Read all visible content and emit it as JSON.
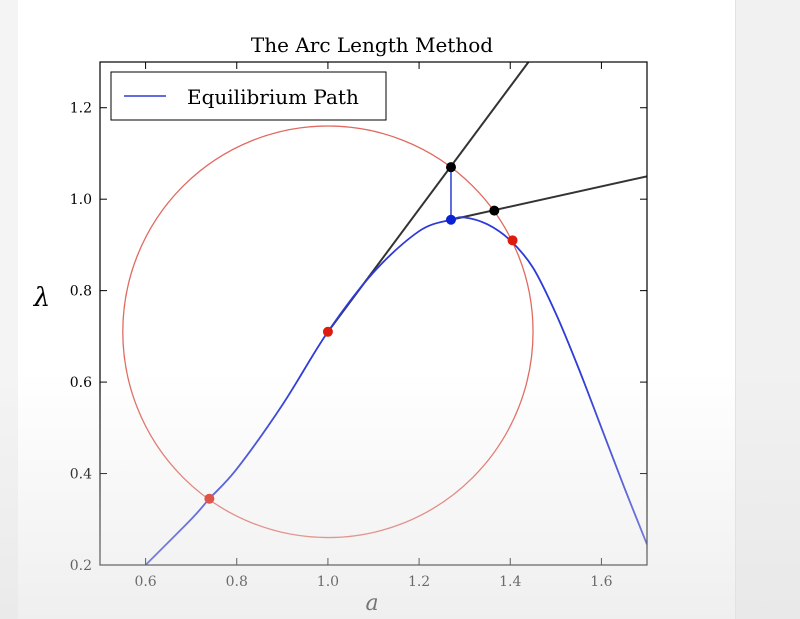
{
  "chart_data": {
    "type": "line",
    "title": "The Arc Length Method",
    "xlabel": "a",
    "ylabel": "λ",
    "xlim": [
      0.5,
      1.7
    ],
    "ylim": [
      0.2,
      1.3
    ],
    "x_ticks": [
      "0.6",
      "0.8",
      "1.0",
      "1.2",
      "1.4",
      "1.6"
    ],
    "y_ticks": [
      "0.2",
      "0.4",
      "0.6",
      "0.8",
      "1.0",
      "1.2"
    ],
    "grid": false,
    "legend": {
      "placement": "top-left",
      "entries": [
        "Equilibrium Path"
      ]
    },
    "series": [
      {
        "name": "Equilibrium Path",
        "color": "#2e3bd6",
        "x": [
          0.6,
          0.7,
          0.74,
          0.8,
          0.9,
          1.0,
          1.1,
          1.2,
          1.27,
          1.3,
          1.35,
          1.4,
          1.45,
          1.5,
          1.55,
          1.6,
          1.65,
          1.7
        ],
        "y": [
          0.2,
          0.3,
          0.345,
          0.41,
          0.55,
          0.71,
          0.84,
          0.93,
          0.955,
          0.96,
          0.945,
          0.91,
          0.85,
          0.75,
          0.63,
          0.5,
          0.37,
          0.245
        ]
      }
    ],
    "arc_circle": {
      "center": [
        1.0,
        0.71
      ],
      "radius": 0.45,
      "color": "#e06a60"
    },
    "tangent_lines": [
      {
        "from": [
          1.0,
          0.71
        ],
        "to": [
          1.44,
          1.3
        ],
        "color": "#333333"
      },
      {
        "from": [
          1.27,
          0.955
        ],
        "to": [
          1.7,
          1.05
        ],
        "color": "#333333"
      }
    ],
    "correction_segment": {
      "from": [
        1.27,
        1.07
      ],
      "to": [
        1.27,
        0.955
      ],
      "color": "#2e3bd6"
    },
    "markers": [
      {
        "x": 1.0,
        "y": 0.71,
        "color": "#dd1c10"
      },
      {
        "x": 0.74,
        "y": 0.345,
        "color": "#dd1c10"
      },
      {
        "x": 1.405,
        "y": 0.91,
        "color": "#dd1c10"
      },
      {
        "x": 1.27,
        "y": 1.07,
        "color": "#000000"
      },
      {
        "x": 1.365,
        "y": 0.975,
        "color": "#000000"
      },
      {
        "x": 1.27,
        "y": 0.955,
        "color": "#0a21d6"
      }
    ]
  }
}
